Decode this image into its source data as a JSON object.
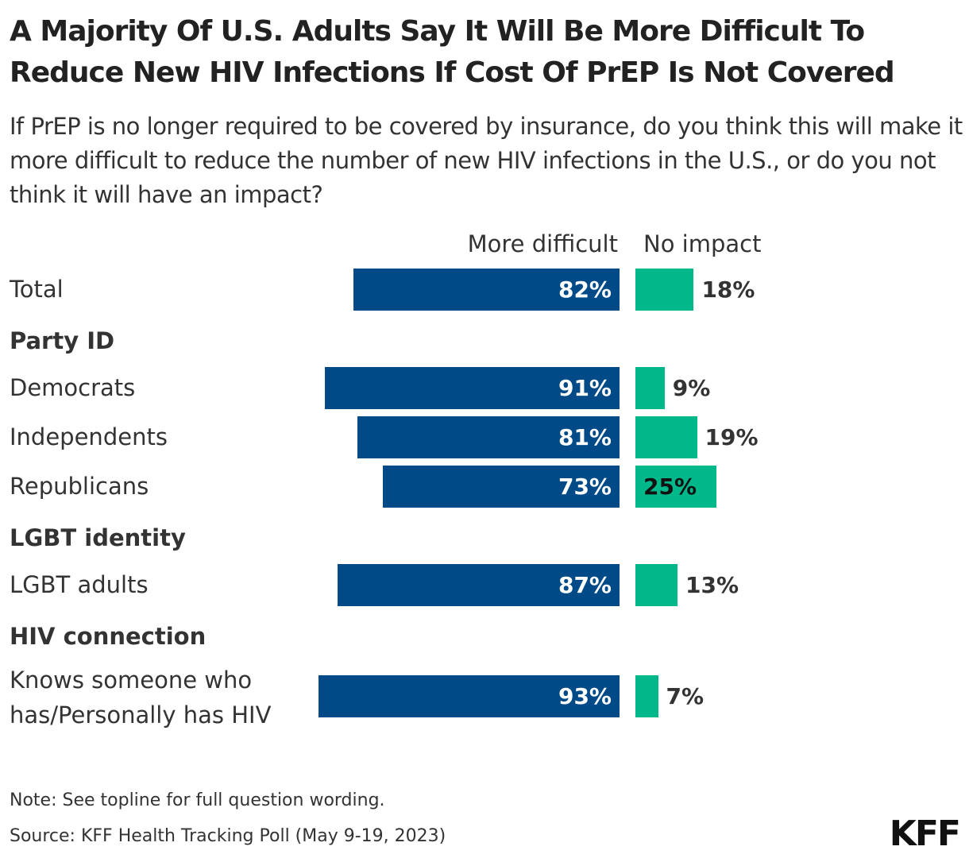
{
  "title": "A Majority Of U.S. Adults Say It Will Be More Difficult To Reduce New HIV Infections If Cost Of PrEP Is Not Covered",
  "subtitle": "If PrEP is no longer required to be covered by insurance, do you think this will make it more difficult to reduce the number of new HIV infections in the U.S., or do you not think it will have an impact?",
  "note": "Note: See topline for full question wording.",
  "source": "Source: KFF Health Tracking Poll (May 9-19, 2023)",
  "logo": "KFF",
  "chart_data": {
    "type": "bar",
    "orientation": "horizontal-diverging",
    "series": [
      {
        "name": "More difficult",
        "color": "#004a87"
      },
      {
        "name": "No impact",
        "color": "#00b88a"
      }
    ],
    "rows": [
      {
        "kind": "row",
        "label": "Total",
        "values": [
          82,
          18
        ]
      },
      {
        "kind": "group",
        "label": "Party ID"
      },
      {
        "kind": "row",
        "label": "Democrats",
        "values": [
          91,
          9
        ]
      },
      {
        "kind": "row",
        "label": "Independents",
        "values": [
          81,
          19
        ]
      },
      {
        "kind": "row",
        "label": "Republicans",
        "values": [
          73,
          25
        ]
      },
      {
        "kind": "group",
        "label": "LGBT identity"
      },
      {
        "kind": "row",
        "label": "LGBT adults",
        "values": [
          87,
          13
        ]
      },
      {
        "kind": "group",
        "label": "HIV connection"
      },
      {
        "kind": "row",
        "label": "Knows someone who has/Personally has HIV",
        "values": [
          93,
          7
        ]
      }
    ],
    "value_suffix": "%"
  }
}
